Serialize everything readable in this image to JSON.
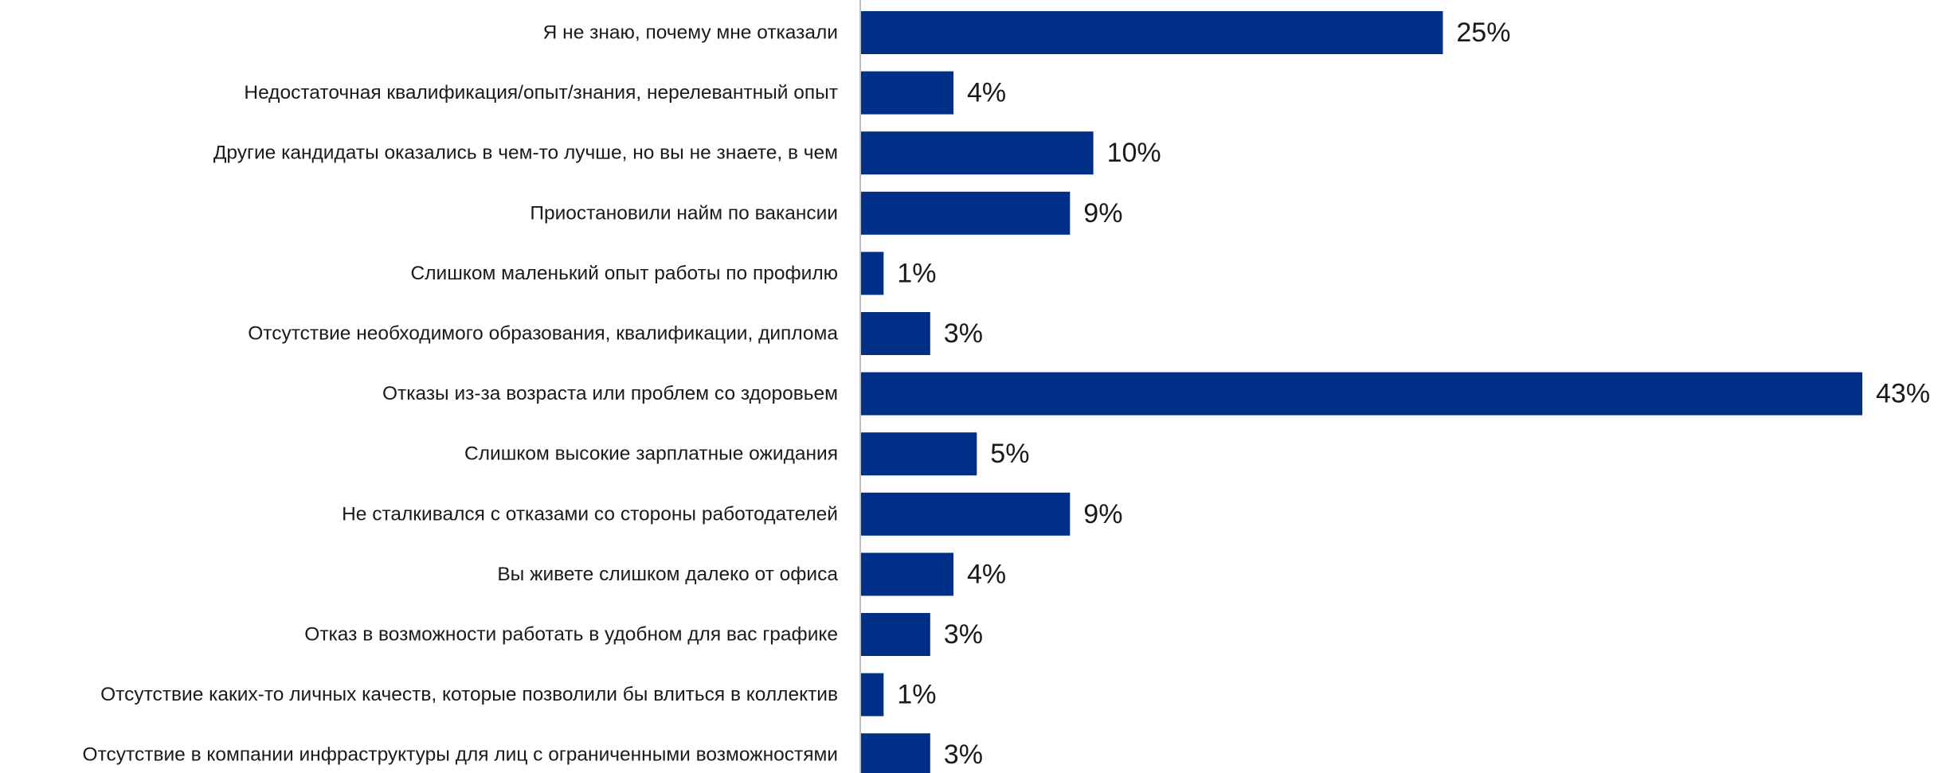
{
  "chart_data": {
    "type": "bar",
    "orientation": "horizontal",
    "title": "",
    "xlabel": "",
    "ylabel": "",
    "categories": [
      "Я не знаю, почему мне отказали",
      "Недостаточная квалификация/опыт/знания, нерелевантный опыт",
      "Другие кандидаты оказались в чем-то лучше, но вы не знаете, в чем",
      "Приостановили найм по вакансии",
      "Слишком маленький опыт работы по профилю",
      "Отсутствие необходимого образования, квалификации, диплома",
      "Отказы из-за возраста или проблем со здоровьем",
      "Слишком высокие зарплатные ожидания",
      "Не сталкивался с отказами со стороны работодателей",
      "Вы живете слишком далеко от офиса",
      "Отказ в возможности работать в удобном для вас графике",
      "Отсутствие каких-то личных качеств, которые позволили бы влиться в коллектив",
      "Отсутствие в компании инфраструктуры для лиц с ограниченными возможностями"
    ],
    "values": [
      25,
      4,
      10,
      9,
      1,
      3,
      43,
      5,
      9,
      4,
      3,
      1,
      3
    ],
    "value_labels": [
      "25%",
      "4%",
      "10%",
      "9%",
      "1%",
      "3%",
      "43%",
      "5%",
      "9%",
      "4%",
      "3%",
      "1%",
      "3%"
    ],
    "xlim": [
      0,
      43
    ],
    "grid": false,
    "legend": "none",
    "colors": {
      "bar": "#002f87",
      "axis": "#bfbfbf",
      "text": "#1a1a1a"
    }
  }
}
